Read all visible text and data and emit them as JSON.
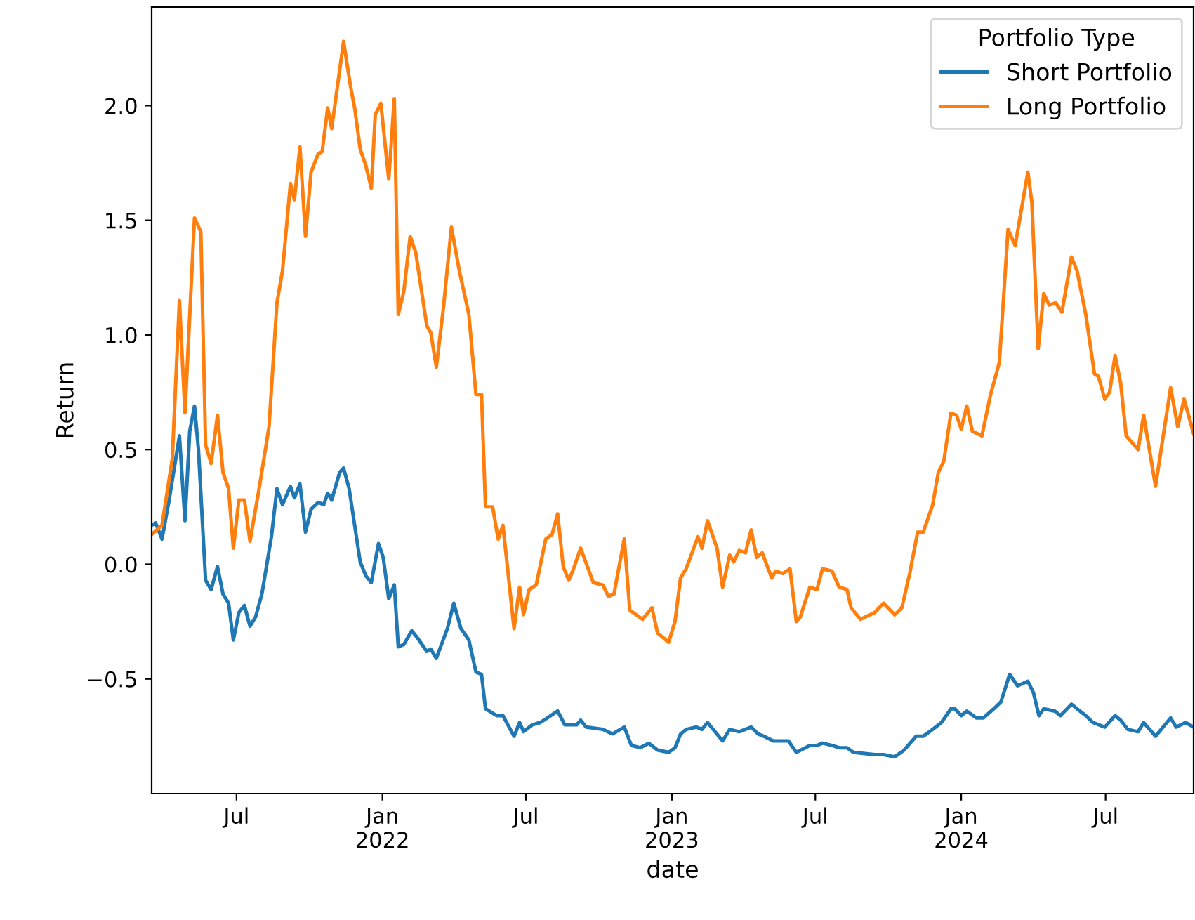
{
  "chart_data": {
    "type": "line",
    "xlabel": "date",
    "ylabel": "Return",
    "legend_title": "Portfolio Type",
    "legend": "top right",
    "grid": false,
    "xlim": [
      "2021-03-16",
      "2024-10-20"
    ],
    "xticks": [
      {
        "value": "2021-07-01",
        "label": "Jul"
      },
      {
        "value": "2022-01-01",
        "label": "Jan\n2022"
      },
      {
        "value": "2022-07-01",
        "label": "Jul"
      },
      {
        "value": "2023-01-01",
        "label": "Jan\n2023"
      },
      {
        "value": "2023-07-01",
        "label": "Jul"
      },
      {
        "value": "2024-01-01",
        "label": "Jan\n2024"
      },
      {
        "value": "2024-07-01",
        "label": "Jul"
      }
    ],
    "ylim": [
      -1.0,
      2.43
    ],
    "yticks": [
      {
        "value": -0.5,
        "label": "−0.5"
      },
      {
        "value": 0,
        "label": "0.0"
      },
      {
        "value": 0.5,
        "label": "0.5"
      },
      {
        "value": 1.0,
        "label": "1.0"
      },
      {
        "value": 1.5,
        "label": "1.5"
      },
      {
        "value": 2.0,
        "label": "2.0"
      }
    ],
    "series": [
      {
        "name": "Short Portfolio",
        "color": "#1f77b4",
        "x": [
          "2021-03-16",
          "2021-03-21",
          "2021-03-29",
          "2021-04-07",
          "2021-04-20",
          "2021-04-27",
          "2021-05-03",
          "2021-05-09",
          "2021-05-14",
          "2021-05-23",
          "2021-05-30",
          "2021-06-07",
          "2021-06-14",
          "2021-06-21",
          "2021-06-27",
          "2021-07-04",
          "2021-07-11",
          "2021-07-18",
          "2021-07-25",
          "2021-08-02",
          "2021-08-14",
          "2021-08-21",
          "2021-08-28",
          "2021-09-07",
          "2021-09-12",
          "2021-09-19",
          "2021-09-26",
          "2021-10-03",
          "2021-10-12",
          "2021-10-19",
          "2021-10-24",
          "2021-10-29",
          "2021-11-08",
          "2021-11-13",
          "2021-11-20",
          "2021-12-04",
          "2021-12-11",
          "2021-12-18",
          "2021-12-27",
          "2022-01-02",
          "2022-01-09",
          "2022-01-16",
          "2022-01-21",
          "2022-01-28",
          "2022-02-07",
          "2022-02-14",
          "2022-02-26",
          "2022-03-03",
          "2022-03-10",
          "2022-03-24",
          "2022-04-01",
          "2022-04-10",
          "2022-04-20",
          "2022-04-29",
          "2022-05-06",
          "2022-05-11",
          "2022-05-25",
          "2022-06-02",
          "2022-06-16",
          "2022-06-23",
          "2022-06-28",
          "2022-07-09",
          "2022-07-19",
          "2022-07-28",
          "2022-08-10",
          "2022-08-19",
          "2022-09-03",
          "2022-09-08",
          "2022-09-15",
          "2022-10-06",
          "2022-10-18",
          "2022-11-02",
          "2022-11-11",
          "2022-11-22",
          "2022-12-03",
          "2022-12-14",
          "2022-12-28",
          "2023-01-05",
          "2023-01-12",
          "2023-01-19",
          "2023-02-01",
          "2023-02-08",
          "2023-02-15",
          "2023-03-06",
          "2023-03-15",
          "2023-03-27",
          "2023-04-11",
          "2023-04-20",
          "2023-04-27",
          "2023-05-09",
          "2023-05-28",
          "2023-06-07",
          "2023-06-24",
          "2023-07-03",
          "2023-07-10",
          "2023-07-22",
          "2023-07-31",
          "2023-08-10",
          "2023-08-18",
          "2023-09-14",
          "2023-09-25",
          "2023-10-09",
          "2023-10-21",
          "2023-11-05",
          "2023-11-14",
          "2023-11-26",
          "2023-12-07",
          "2023-12-19",
          "2023-12-24",
          "2024-01-01",
          "2024-01-08",
          "2024-01-20",
          "2024-01-29",
          "2024-02-11",
          "2024-02-20",
          "2024-03-02",
          "2024-03-12",
          "2024-03-25",
          "2024-04-01",
          "2024-04-08",
          "2024-04-14",
          "2024-04-28",
          "2024-05-05",
          "2024-05-19",
          "2024-05-26",
          "2024-06-06",
          "2024-06-15",
          "2024-06-30",
          "2024-07-13",
          "2024-07-20",
          "2024-07-29",
          "2024-08-11",
          "2024-08-18",
          "2024-09-02",
          "2024-09-21",
          "2024-09-28",
          "2024-10-10",
          "2024-10-20"
        ],
        "values": [
          0.17,
          0.18,
          0.11,
          0.28,
          0.56,
          0.19,
          0.58,
          0.69,
          0.5,
          -0.07,
          -0.11,
          -0.01,
          -0.13,
          -0.17,
          -0.33,
          -0.21,
          -0.18,
          -0.27,
          -0.23,
          -0.13,
          0.12,
          0.33,
          0.26,
          0.34,
          0.29,
          0.35,
          0.14,
          0.24,
          0.27,
          0.26,
          0.31,
          0.28,
          0.4,
          0.42,
          0.33,
          0.01,
          -0.05,
          -0.08,
          0.09,
          0.03,
          -0.15,
          -0.09,
          -0.36,
          -0.35,
          -0.29,
          -0.32,
          -0.38,
          -0.37,
          -0.41,
          -0.28,
          -0.17,
          -0.28,
          -0.33,
          -0.47,
          -0.48,
          -0.63,
          -0.66,
          -0.66,
          -0.75,
          -0.69,
          -0.73,
          -0.7,
          -0.69,
          -0.67,
          -0.64,
          -0.7,
          -0.7,
          -0.68,
          -0.71,
          -0.72,
          -0.74,
          -0.71,
          -0.79,
          -0.8,
          -0.78,
          -0.81,
          -0.82,
          -0.8,
          -0.74,
          -0.72,
          -0.71,
          -0.72,
          -0.69,
          -0.77,
          -0.72,
          -0.73,
          -0.71,
          -0.74,
          -0.75,
          -0.77,
          -0.77,
          -0.82,
          -0.79,
          -0.79,
          -0.78,
          -0.79,
          -0.8,
          -0.8,
          -0.82,
          -0.83,
          -0.83,
          -0.84,
          -0.81,
          -0.75,
          -0.75,
          -0.72,
          -0.69,
          -0.63,
          -0.63,
          -0.66,
          -0.64,
          -0.67,
          -0.67,
          -0.63,
          -0.6,
          -0.48,
          -0.53,
          -0.51,
          -0.56,
          -0.66,
          -0.63,
          -0.64,
          -0.66,
          -0.61,
          -0.63,
          -0.66,
          -0.69,
          -0.71,
          -0.66,
          -0.68,
          -0.72,
          -0.73,
          -0.69,
          -0.75,
          -0.67,
          -0.71,
          -0.69,
          -0.71
        ]
      },
      {
        "name": "Long Portfolio",
        "color": "#ff7f0e",
        "x": [
          "2021-03-16",
          "2021-03-29",
          "2021-04-11",
          "2021-04-20",
          "2021-04-27",
          "2021-05-09",
          "2021-05-17",
          "2021-05-23",
          "2021-05-30",
          "2021-06-07",
          "2021-06-14",
          "2021-06-21",
          "2021-06-27",
          "2021-07-04",
          "2021-07-11",
          "2021-07-18",
          "2021-07-30",
          "2021-08-11",
          "2021-08-21",
          "2021-08-28",
          "2021-09-07",
          "2021-09-12",
          "2021-09-19",
          "2021-09-26",
          "2021-10-03",
          "2021-10-12",
          "2021-10-17",
          "2021-10-24",
          "2021-10-29",
          "2021-11-13",
          "2021-11-22",
          "2021-11-27",
          "2021-12-04",
          "2021-12-11",
          "2021-12-18",
          "2021-12-23",
          "2021-12-30",
          "2022-01-09",
          "2022-01-16",
          "2022-01-21",
          "2022-01-28",
          "2022-02-05",
          "2022-02-12",
          "2022-02-26",
          "2022-03-03",
          "2022-03-10",
          "2022-03-19",
          "2022-03-29",
          "2022-04-08",
          "2022-04-20",
          "2022-04-29",
          "2022-05-06",
          "2022-05-11",
          "2022-05-20",
          "2022-05-27",
          "2022-06-02",
          "2022-06-16",
          "2022-06-23",
          "2022-06-28",
          "2022-07-05",
          "2022-07-14",
          "2022-07-26",
          "2022-08-03",
          "2022-08-10",
          "2022-08-17",
          "2022-08-24",
          "2022-08-29",
          "2022-09-08",
          "2022-09-24",
          "2022-10-06",
          "2022-10-13",
          "2022-10-20",
          "2022-11-02",
          "2022-11-09",
          "2022-11-25",
          "2022-12-07",
          "2022-12-14",
          "2022-12-28",
          "2023-01-05",
          "2023-01-12",
          "2023-01-19",
          "2023-02-03",
          "2023-02-08",
          "2023-02-15",
          "2023-02-27",
          "2023-03-06",
          "2023-03-15",
          "2023-03-20",
          "2023-03-27",
          "2023-04-04",
          "2023-04-11",
          "2023-04-18",
          "2023-04-25",
          "2023-05-07",
          "2023-05-12",
          "2023-05-21",
          "2023-05-30",
          "2023-06-07",
          "2023-06-12",
          "2023-06-24",
          "2023-07-03",
          "2023-07-10",
          "2023-07-22",
          "2023-07-31",
          "2023-08-10",
          "2023-08-15",
          "2023-08-27",
          "2023-09-14",
          "2023-09-25",
          "2023-10-09",
          "2023-10-18",
          "2023-10-28",
          "2023-11-07",
          "2023-11-14",
          "2023-11-26",
          "2023-12-03",
          "2023-12-10",
          "2023-12-19",
          "2023-12-26",
          "2024-01-01",
          "2024-01-08",
          "2024-01-15",
          "2024-01-27",
          "2024-02-07",
          "2024-02-18",
          "2024-02-29",
          "2024-03-09",
          "2024-03-25",
          "2024-03-30",
          "2024-04-07",
          "2024-04-14",
          "2024-04-21",
          "2024-04-29",
          "2024-05-07",
          "2024-05-19",
          "2024-05-26",
          "2024-06-06",
          "2024-06-17",
          "2024-06-22",
          "2024-06-30",
          "2024-07-06",
          "2024-07-13",
          "2024-07-20",
          "2024-07-27",
          "2024-08-11",
          "2024-08-18",
          "2024-09-02",
          "2024-09-21",
          "2024-09-30",
          "2024-10-08",
          "2024-10-20"
        ],
        "values": [
          0.13,
          0.17,
          0.46,
          1.15,
          0.66,
          1.51,
          1.45,
          0.52,
          0.44,
          0.65,
          0.4,
          0.33,
          0.07,
          0.28,
          0.28,
          0.1,
          0.34,
          0.6,
          1.14,
          1.28,
          1.66,
          1.59,
          1.82,
          1.43,
          1.71,
          1.79,
          1.8,
          1.99,
          1.9,
          2.28,
          2.08,
          1.99,
          1.81,
          1.74,
          1.64,
          1.96,
          2.01,
          1.68,
          2.03,
          1.09,
          1.19,
          1.43,
          1.36,
          1.04,
          1.01,
          0.86,
          1.12,
          1.47,
          1.28,
          1.09,
          0.74,
          0.74,
          0.25,
          0.25,
          0.11,
          0.17,
          -0.28,
          -0.1,
          -0.22,
          -0.11,
          -0.09,
          0.11,
          0.13,
          0.22,
          -0.01,
          -0.07,
          -0.03,
          0.07,
          -0.08,
          -0.09,
          -0.14,
          -0.13,
          0.11,
          -0.2,
          -0.24,
          -0.19,
          -0.3,
          -0.34,
          -0.25,
          -0.06,
          -0.02,
          0.12,
          0.07,
          0.19,
          0.07,
          -0.1,
          0.04,
          0.01,
          0.06,
          0.05,
          0.15,
          0.03,
          0.05,
          -0.06,
          -0.03,
          -0.04,
          -0.02,
          -0.25,
          -0.23,
          -0.1,
          -0.11,
          -0.02,
          -0.03,
          -0.1,
          -0.11,
          -0.19,
          -0.24,
          -0.21,
          -0.17,
          -0.22,
          -0.19,
          -0.04,
          0.14,
          0.14,
          0.26,
          0.4,
          0.45,
          0.66,
          0.65,
          0.59,
          0.69,
          0.58,
          0.56,
          0.74,
          0.88,
          1.46,
          1.39,
          1.71,
          1.58,
          0.94,
          1.18,
          1.13,
          1.14,
          1.1,
          1.34,
          1.28,
          1.09,
          0.83,
          0.82,
          0.72,
          0.75,
          0.91,
          0.79,
          0.56,
          0.5,
          0.65,
          0.34,
          0.77,
          0.6,
          0.72,
          0.57
        ]
      }
    ]
  }
}
